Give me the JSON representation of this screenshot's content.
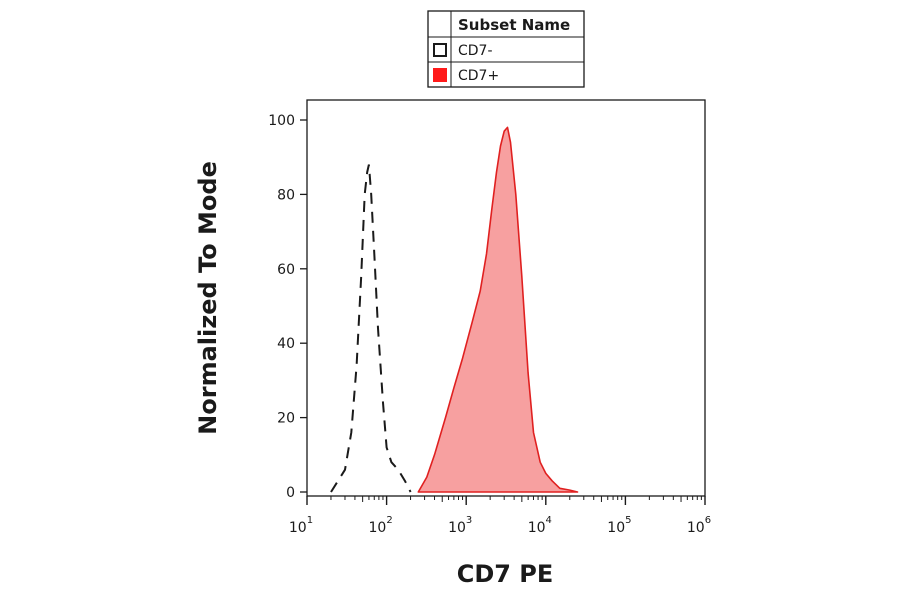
{
  "chart_data": {
    "type": "area",
    "xlabel": "CD7 PE",
    "ylabel": "Normalized To Mode",
    "x_scale": "log",
    "xlim": [
      10,
      1000000
    ],
    "ylim": [
      0,
      100
    ],
    "y_ticks": [
      0,
      20,
      40,
      60,
      80,
      100
    ],
    "x_ticks": [
      {
        "base": "10",
        "exp": "1"
      },
      {
        "base": "10",
        "exp": "2"
      },
      {
        "base": "10",
        "exp": "3"
      },
      {
        "base": "10",
        "exp": "4"
      },
      {
        "base": "10",
        "exp": "5"
      },
      {
        "base": "10",
        "exp": "6"
      }
    ],
    "grid": false,
    "legend": {
      "position": "top-center",
      "header": "Subset Name",
      "entries": [
        "CD7-",
        "CD7+"
      ]
    },
    "series": [
      {
        "name": "CD7-",
        "style": "dashed",
        "fill": "none",
        "color": "#1a1a1a",
        "x": [
          20,
          30,
          36,
          42,
          48,
          53,
          57,
          60,
          64,
          70,
          78,
          90,
          100,
          115,
          140,
          170,
          200
        ],
        "y": [
          0,
          6,
          16,
          34,
          58,
          80,
          86,
          88,
          80,
          64,
          44,
          24,
          12,
          8,
          6,
          3,
          0
        ]
      },
      {
        "name": "CD7+",
        "style": "solid",
        "fill": "#f7a0a0",
        "color": "#e02020",
        "x": [
          250,
          320,
          400,
          550,
          700,
          900,
          1200,
          1500,
          1800,
          2100,
          2400,
          2700,
          3000,
          3300,
          3600,
          4200,
          5000,
          6000,
          7000,
          8500,
          10000,
          12000,
          15000,
          20000,
          25000
        ],
        "y": [
          0,
          4,
          10,
          20,
          28,
          36,
          46,
          54,
          64,
          76,
          86,
          93,
          97,
          98,
          94,
          80,
          58,
          32,
          16,
          8,
          5,
          3,
          1,
          0.5,
          0
        ]
      }
    ]
  }
}
